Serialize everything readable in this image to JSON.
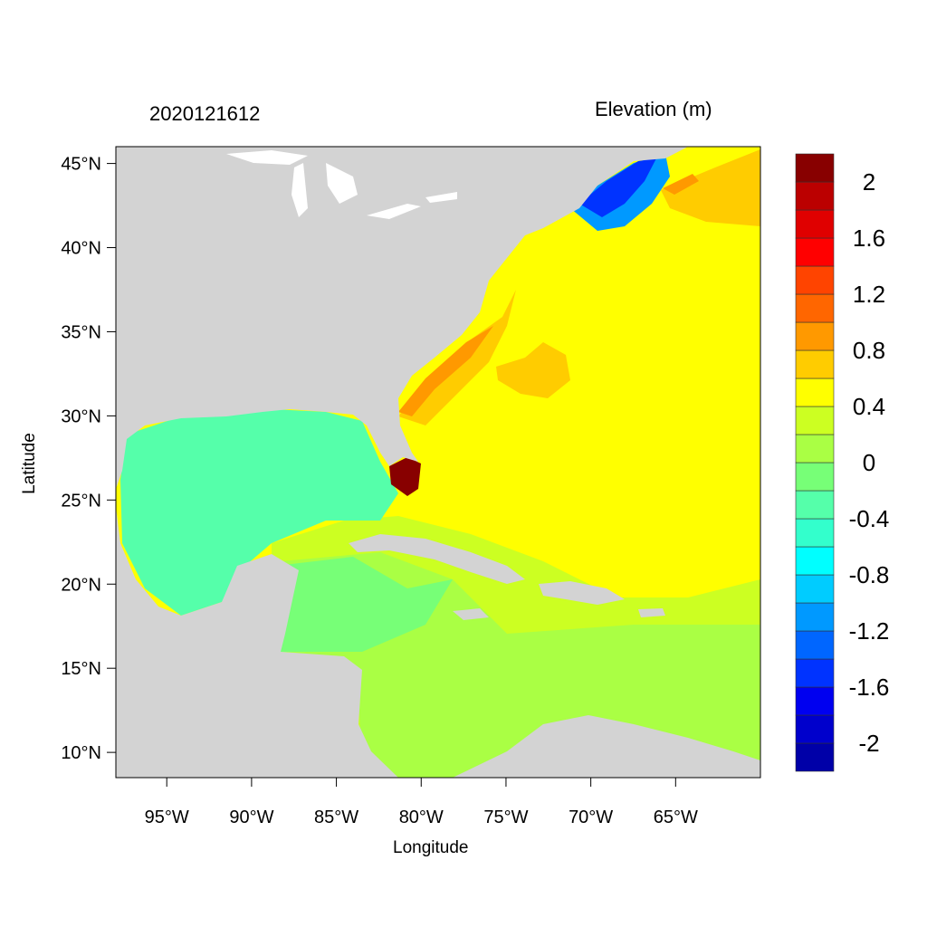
{
  "map": {
    "left_title": "2020121612",
    "right_title": "Elevation (m)",
    "xlabel": "Longitude",
    "ylabel": "Latitude",
    "lon_ticks": [
      {
        "value": -95,
        "label": "95°W"
      },
      {
        "value": -90,
        "label": "90°W"
      },
      {
        "value": -85,
        "label": "85°W"
      },
      {
        "value": -80,
        "label": "80°W"
      },
      {
        "value": -75,
        "label": "75°W"
      },
      {
        "value": -70,
        "label": "70°W"
      },
      {
        "value": -65,
        "label": "65°W"
      }
    ],
    "lat_ticks": [
      {
        "value": 45,
        "label": "45°N"
      },
      {
        "value": 40,
        "label": "40°N"
      },
      {
        "value": 35,
        "label": "35°N"
      },
      {
        "value": 30,
        "label": "30°N"
      },
      {
        "value": 25,
        "label": "25°N"
      },
      {
        "value": 20,
        "label": "20°N"
      },
      {
        "value": 15,
        "label": "15°N"
      },
      {
        "value": 10,
        "label": "10°N"
      }
    ],
    "lon_range": [
      -98,
      -60
    ],
    "lat_range": [
      8.5,
      46
    ],
    "land_color": "#d3d3d3"
  },
  "colorbar": {
    "range": [
      -2.2,
      2.2
    ],
    "step": 0.2,
    "colors": [
      "#0000a8",
      "#0000cc",
      "#0000f0",
      "#0033ff",
      "#0066ff",
      "#0099ff",
      "#00ccff",
      "#00ffff",
      "#33ffcc",
      "#55ffaa",
      "#77ff77",
      "#aaff44",
      "#ccff22",
      "#ffff00",
      "#ffcc00",
      "#ff9900",
      "#ff6600",
      "#ff4400",
      "#ff0000",
      "#e00000",
      "#bb0000",
      "#880000"
    ],
    "labels": [
      {
        "value": -2.0,
        "text": "-2"
      },
      {
        "value": -1.6,
        "text": "-1.6"
      },
      {
        "value": -1.2,
        "text": "-1.2"
      },
      {
        "value": -0.8,
        "text": "-0.8"
      },
      {
        "value": -0.4,
        "text": "-0.4"
      },
      {
        "value": 0.0,
        "text": "0"
      },
      {
        "value": 0.4,
        "text": "0.4"
      },
      {
        "value": 0.8,
        "text": "0.8"
      },
      {
        "value": 1.2,
        "text": "1.2"
      },
      {
        "value": 1.6,
        "text": "1.6"
      },
      {
        "value": 2.0,
        "text": "2"
      }
    ]
  }
}
